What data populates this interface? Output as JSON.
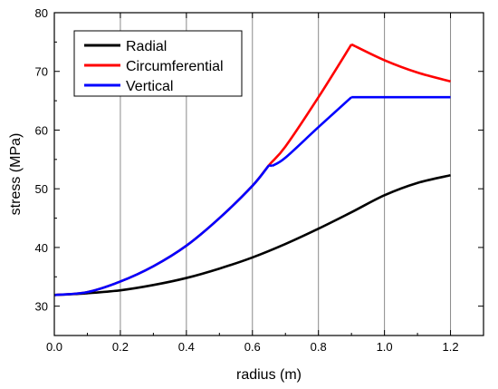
{
  "chart_data": {
    "type": "line",
    "xlabel": "radius (m)",
    "ylabel": "stress (MPa)",
    "xlim": [
      0.0,
      1.3
    ],
    "ylim": [
      25,
      80
    ],
    "xticks": [
      "0.0",
      "0.2",
      "0.4",
      "0.6",
      "0.8",
      "1.0",
      "1.2"
    ],
    "yticks": [
      "30",
      "40",
      "50",
      "60",
      "70",
      "80"
    ],
    "grid": "vertical",
    "legend_position": "top-left",
    "series": [
      {
        "name": "Radial",
        "color": "#000000",
        "x": [
          0.0,
          0.1,
          0.2,
          0.3,
          0.4,
          0.5,
          0.6,
          0.7,
          0.8,
          0.9,
          1.0,
          1.1,
          1.2
        ],
        "y": [
          31.9,
          32.2,
          32.7,
          33.6,
          34.8,
          36.4,
          38.3,
          40.6,
          43.2,
          46.0,
          48.9,
          51.0,
          52.3
        ]
      },
      {
        "name": "Circumferential",
        "color": "#ff0000",
        "x": [
          0.0,
          0.1,
          0.2,
          0.3,
          0.4,
          0.5,
          0.6,
          0.65,
          0.7,
          0.8,
          0.9,
          1.0,
          1.1,
          1.2
        ],
        "y": [
          31.9,
          32.4,
          34.2,
          36.8,
          40.3,
          45.0,
          50.5,
          54.0,
          57.2,
          65.6,
          74.6,
          71.9,
          69.8,
          68.3
        ]
      },
      {
        "name": "Vertical",
        "color": "#0000ff",
        "x": [
          0.0,
          0.1,
          0.2,
          0.3,
          0.4,
          0.5,
          0.6,
          0.65,
          0.66,
          0.7,
          0.8,
          0.9,
          1.0,
          1.1,
          1.2
        ],
        "y": [
          31.9,
          32.4,
          34.2,
          36.8,
          40.3,
          45.0,
          50.5,
          54.0,
          53.9,
          55.3,
          60.5,
          65.6,
          65.6,
          65.6,
          65.6
        ]
      }
    ]
  }
}
